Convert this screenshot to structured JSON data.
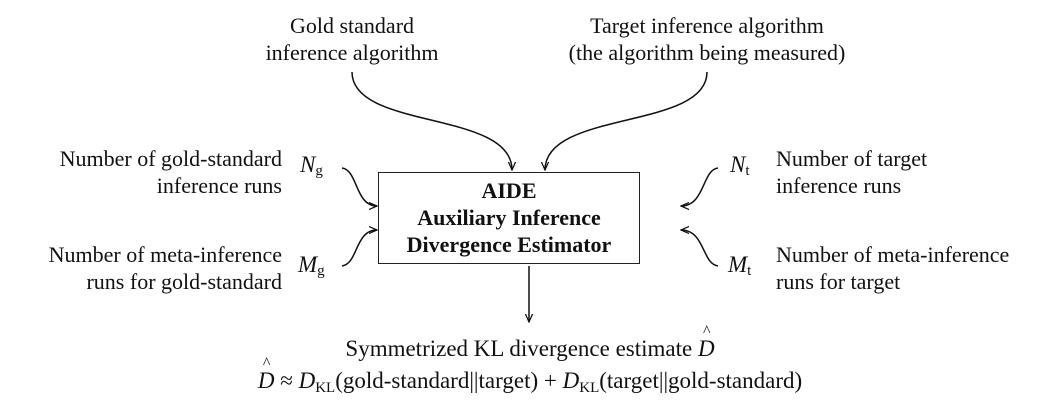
{
  "inputs_top": {
    "gold_line1": "Gold standard",
    "gold_line2": "inference algorithm",
    "target_line1": "Target inference algorithm",
    "target_line2": "(the algorithm being measured)"
  },
  "left_labels": {
    "ng_line1": "Number of gold-standard",
    "ng_line2": "inference runs",
    "mg_line1": "Number of meta-inference",
    "mg_line2": "runs for gold-standard"
  },
  "right_labels": {
    "nt_line1": "Number of target",
    "nt_line2": "inference runs",
    "mt_line1": "Number of meta-inference",
    "mt_line2": "runs for target"
  },
  "symbols": {
    "N": "N",
    "M": "M",
    "g": "g",
    "t": "t"
  },
  "box": {
    "line1": "AIDE",
    "line2": "Auxiliary Inference",
    "line3": "Divergence Estimator"
  },
  "output": {
    "line1_text": "Symmetrized KL divergence estimate ",
    "D": "D",
    "approx": " ≈ ",
    "KL": "KL",
    "term1": "(gold-standard||target) + ",
    "term2": "(target||gold-standard)"
  }
}
